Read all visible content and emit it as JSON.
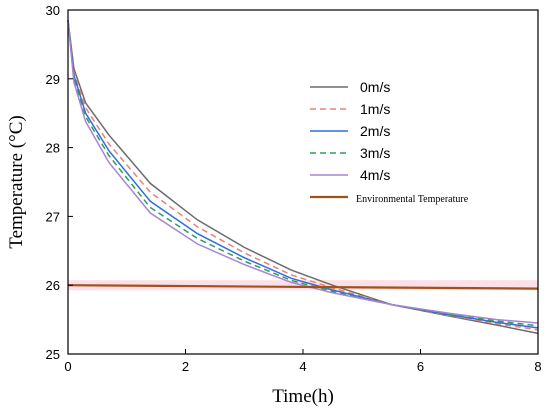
{
  "chart_data": {
    "type": "line",
    "title": "",
    "xlabel": "Time(h)",
    "ylabel": "Temperature (°C)",
    "xlim": [
      0,
      8
    ],
    "ylim": [
      25,
      30
    ],
    "xticks": [
      0,
      2,
      4,
      6,
      8
    ],
    "yticks": [
      25,
      26,
      27,
      28,
      29,
      30
    ],
    "grid": false,
    "legend_position": "top-right",
    "series": [
      {
        "name": "0m/s",
        "color": "#6b6b6b",
        "dash": "solid",
        "x": [
          0,
          0.1,
          0.3,
          0.7,
          1.4,
          2.2,
          3.0,
          3.8,
          4.5,
          5.5,
          6.5,
          7.3,
          8.0
        ],
        "y": [
          29.85,
          29.15,
          28.65,
          28.18,
          27.48,
          26.95,
          26.55,
          26.22,
          26.0,
          25.72,
          25.55,
          25.42,
          25.3
        ]
      },
      {
        "name": "1m/s",
        "color": "#e8817b",
        "dash": "dashed",
        "x": [
          0,
          0.1,
          0.3,
          0.7,
          1.4,
          2.2,
          3.0,
          3.8,
          4.5,
          5.5,
          6.5,
          7.3,
          8.0
        ],
        "y": [
          29.85,
          29.1,
          28.58,
          28.05,
          27.35,
          26.85,
          26.47,
          26.15,
          25.96,
          25.72,
          25.56,
          25.44,
          25.35
        ]
      },
      {
        "name": "2m/s",
        "color": "#2f6fd8",
        "dash": "solid",
        "x": [
          0,
          0.1,
          0.3,
          0.7,
          1.4,
          2.2,
          3.0,
          3.8,
          4.5,
          5.5,
          6.5,
          7.3,
          8.0
        ],
        "y": [
          29.85,
          29.05,
          28.5,
          27.95,
          27.22,
          26.75,
          26.4,
          26.1,
          25.93,
          25.72,
          25.57,
          25.46,
          25.38
        ]
      },
      {
        "name": "3m/s",
        "color": "#2e9e5b",
        "dash": "dashed",
        "x": [
          0,
          0.1,
          0.3,
          0.7,
          1.4,
          2.2,
          3.0,
          3.8,
          4.5,
          5.5,
          6.5,
          7.3,
          8.0
        ],
        "y": [
          29.85,
          29.0,
          28.45,
          27.88,
          27.13,
          26.68,
          26.35,
          26.07,
          25.91,
          25.72,
          25.58,
          25.48,
          25.41
        ]
      },
      {
        "name": "4m/s",
        "color": "#a784d6",
        "dash": "solid",
        "x": [
          0,
          0.1,
          0.3,
          0.7,
          1.4,
          2.2,
          3.0,
          3.8,
          4.5,
          5.5,
          6.5,
          7.3,
          8.0
        ],
        "y": [
          29.85,
          28.95,
          28.38,
          27.78,
          27.05,
          26.6,
          26.3,
          26.04,
          25.89,
          25.72,
          25.59,
          25.5,
          25.45
        ]
      },
      {
        "name": "Environmental Temperature",
        "color": "#a0521a",
        "dash": "solid",
        "x": [
          0,
          8
        ],
        "y": [
          26.0,
          25.95
        ]
      }
    ]
  }
}
